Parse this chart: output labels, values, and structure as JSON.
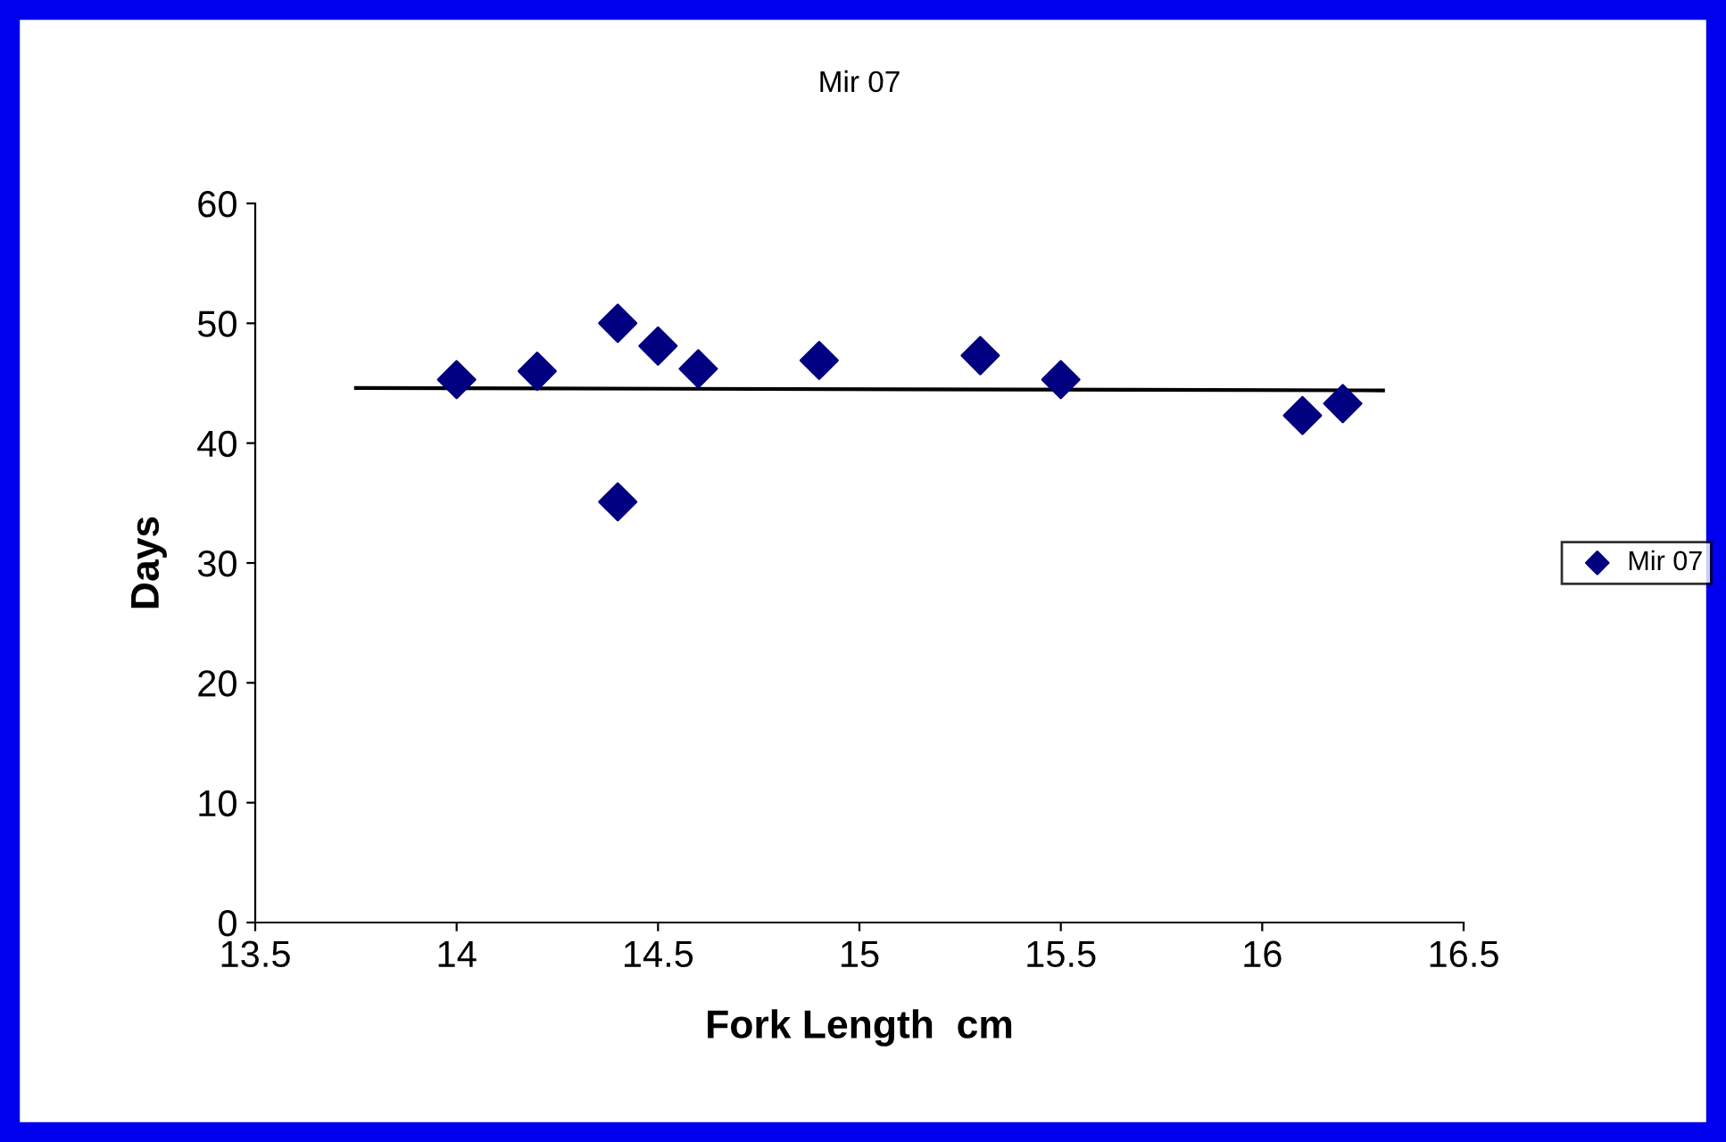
{
  "chart_data": {
    "type": "scatter",
    "title": "Mir 07",
    "xlabel": "Fork Length  cm",
    "ylabel": "Days",
    "xlim": [
      13.5,
      16.5
    ],
    "xticks": [
      13.5,
      14,
      14.5,
      15,
      15.5,
      16,
      16.5
    ],
    "ylim": [
      0,
      60
    ],
    "yticks": [
      0,
      10,
      20,
      30,
      40,
      50,
      60
    ],
    "grid": false,
    "legend": "right",
    "series": [
      {
        "name": "Mir 07",
        "color": "#000080",
        "marker": "diamond",
        "x": [
          14.0,
          14.2,
          14.4,
          14.4,
          14.5,
          14.6,
          14.9,
          15.3,
          15.5,
          16.1,
          16.2
        ],
        "values": [
          45.3,
          46.0,
          50.0,
          35.1,
          48.1,
          46.2,
          46.9,
          47.3,
          45.3,
          42.3,
          43.3
        ]
      },
      {
        "type": "line",
        "color": "#000000",
        "x": [
          13.75,
          16.3
        ],
        "values": [
          44.6,
          44.4
        ]
      }
    ]
  }
}
